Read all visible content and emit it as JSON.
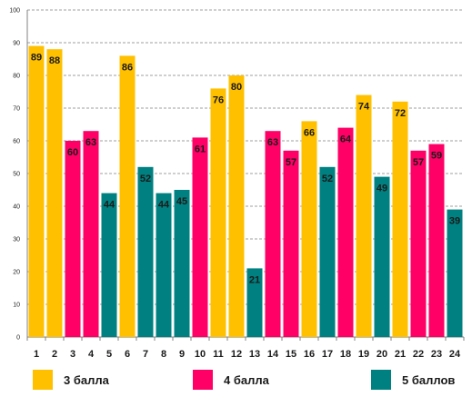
{
  "chart_data": {
    "type": "bar",
    "categories": [
      "1",
      "2",
      "3",
      "4",
      "5",
      "6",
      "7",
      "8",
      "9",
      "10",
      "11",
      "12",
      "13",
      "14",
      "15",
      "16",
      "17",
      "18",
      "19",
      "20",
      "21",
      "22",
      "23",
      "24"
    ],
    "values": [
      89,
      88,
      60,
      63,
      44,
      86,
      52,
      44,
      45,
      61,
      76,
      80,
      21,
      63,
      57,
      66,
      52,
      64,
      74,
      49,
      72,
      57,
      59,
      39
    ],
    "groups": [
      "3 балла",
      "3 балла",
      "4 балла",
      "4 балла",
      "5 баллов",
      "3 балла",
      "5 баллов",
      "5 баллов",
      "5 баллов",
      "4 балла",
      "3 балла",
      "3 балла",
      "5 баллов",
      "4 балла",
      "4 балла",
      "3 балла",
      "5 баллов",
      "4 балла",
      "3 балла",
      "5 баллов",
      "3 балла",
      "4 балла",
      "4 балла",
      "5 баллов"
    ],
    "series": [
      {
        "name": "3 балла",
        "color": "#FFC000"
      },
      {
        "name": "4 балла",
        "color": "#FF0066"
      },
      {
        "name": "5 баллов",
        "color": "#008080"
      }
    ],
    "y_ticks": [
      "0",
      "10",
      "20",
      "30",
      "40",
      "50",
      "60",
      "70",
      "80",
      "90",
      "100"
    ],
    "ylim": [
      0,
      100
    ],
    "grid": true,
    "legend_position": "bottom"
  }
}
